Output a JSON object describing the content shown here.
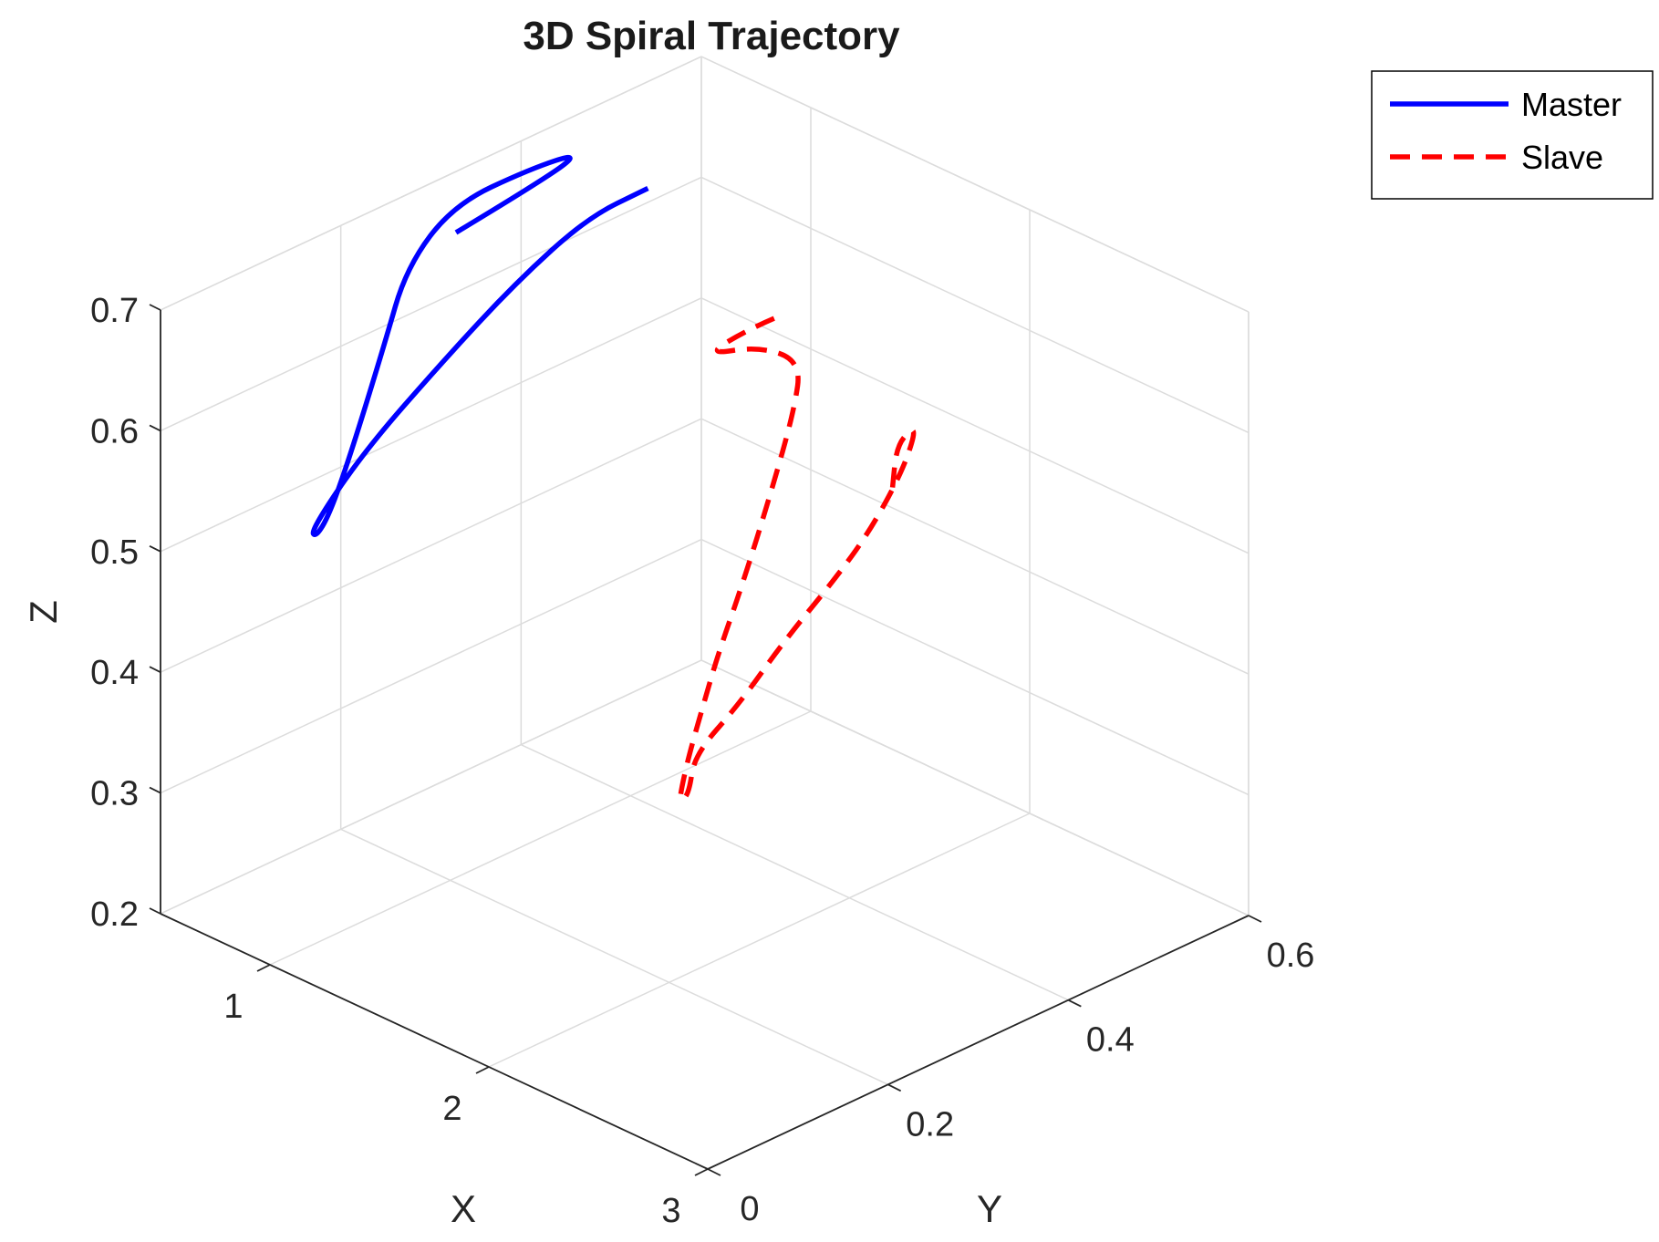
{
  "chart_data": {
    "type": "line",
    "title": "3D Spiral Trajectory",
    "xlabel": "X",
    "ylabel": "Y",
    "zlabel": "Z",
    "xlim": [
      0.5,
      3
    ],
    "ylim": [
      0,
      0.6
    ],
    "zlim": [
      0.2,
      0.7
    ],
    "xticks": [
      1,
      2,
      3
    ],
    "yticks": [
      0,
      0.2,
      0.4,
      0.6
    ],
    "zticks": [
      0.2,
      0.3,
      0.4,
      0.5,
      0.6,
      0.7
    ],
    "xtick_labels": [
      "1",
      "2",
      "3"
    ],
    "ytick_labels": [
      "0",
      "0.2",
      "0.4",
      "0.6"
    ],
    "ztick_labels": [
      "0.2",
      "0.3",
      "0.4",
      "0.5",
      "0.6",
      "0.7"
    ],
    "grid": true,
    "legend_position": "top-right",
    "series": [
      {
        "name": "Master",
        "color": "#0000ff",
        "style": "solid",
        "points": [
          [
            0.45,
            0.34,
            0.641
          ],
          [
            0.6,
            0.4,
            0.676
          ],
          [
            0.65,
            0.43,
            0.693
          ],
          [
            0.58,
            0.39,
            0.687
          ],
          [
            0.48,
            0.33,
            0.67
          ],
          [
            0.43,
            0.29,
            0.628
          ],
          [
            0.45,
            0.26,
            0.575
          ],
          [
            0.5,
            0.21,
            0.505
          ],
          [
            0.53,
            0.18,
            0.47
          ],
          [
            0.55,
            0.16,
            0.46
          ],
          [
            0.57,
            0.15,
            0.471
          ],
          [
            0.6,
            0.2,
            0.52
          ],
          [
            0.64,
            0.28,
            0.572
          ],
          [
            0.68,
            0.35,
            0.615
          ],
          [
            0.72,
            0.42,
            0.648
          ],
          [
            0.75,
            0.48,
            0.654
          ]
        ]
      },
      {
        "name": "Slave",
        "color": "#ff0000",
        "style": "dashed",
        "points": [
          [
            1.45,
            0.45,
            0.616
          ],
          [
            1.38,
            0.44,
            0.605
          ],
          [
            1.3,
            0.41,
            0.587
          ],
          [
            1.38,
            0.45,
            0.587
          ],
          [
            1.45,
            0.48,
            0.57
          ],
          [
            1.5,
            0.46,
            0.54
          ],
          [
            1.6,
            0.41,
            0.498
          ],
          [
            1.72,
            0.35,
            0.455
          ],
          [
            1.85,
            0.29,
            0.426
          ],
          [
            1.95,
            0.25,
            0.408
          ],
          [
            2.05,
            0.21,
            0.389
          ],
          [
            2.1,
            0.19,
            0.375
          ],
          [
            2.13,
            0.18,
            0.367
          ],
          [
            2.05,
            0.21,
            0.357
          ],
          [
            1.95,
            0.24,
            0.37
          ],
          [
            1.95,
            0.29,
            0.395
          ],
          [
            1.9,
            0.35,
            0.42
          ],
          [
            1.85,
            0.42,
            0.444
          ],
          [
            1.8,
            0.47,
            0.461
          ],
          [
            1.7,
            0.53,
            0.48
          ],
          [
            1.6,
            0.57,
            0.491
          ],
          [
            1.5,
            0.59,
            0.48
          ],
          [
            1.35,
            0.61,
            0.445
          ],
          [
            1.25,
            0.63,
            0.396
          ]
        ]
      }
    ]
  }
}
